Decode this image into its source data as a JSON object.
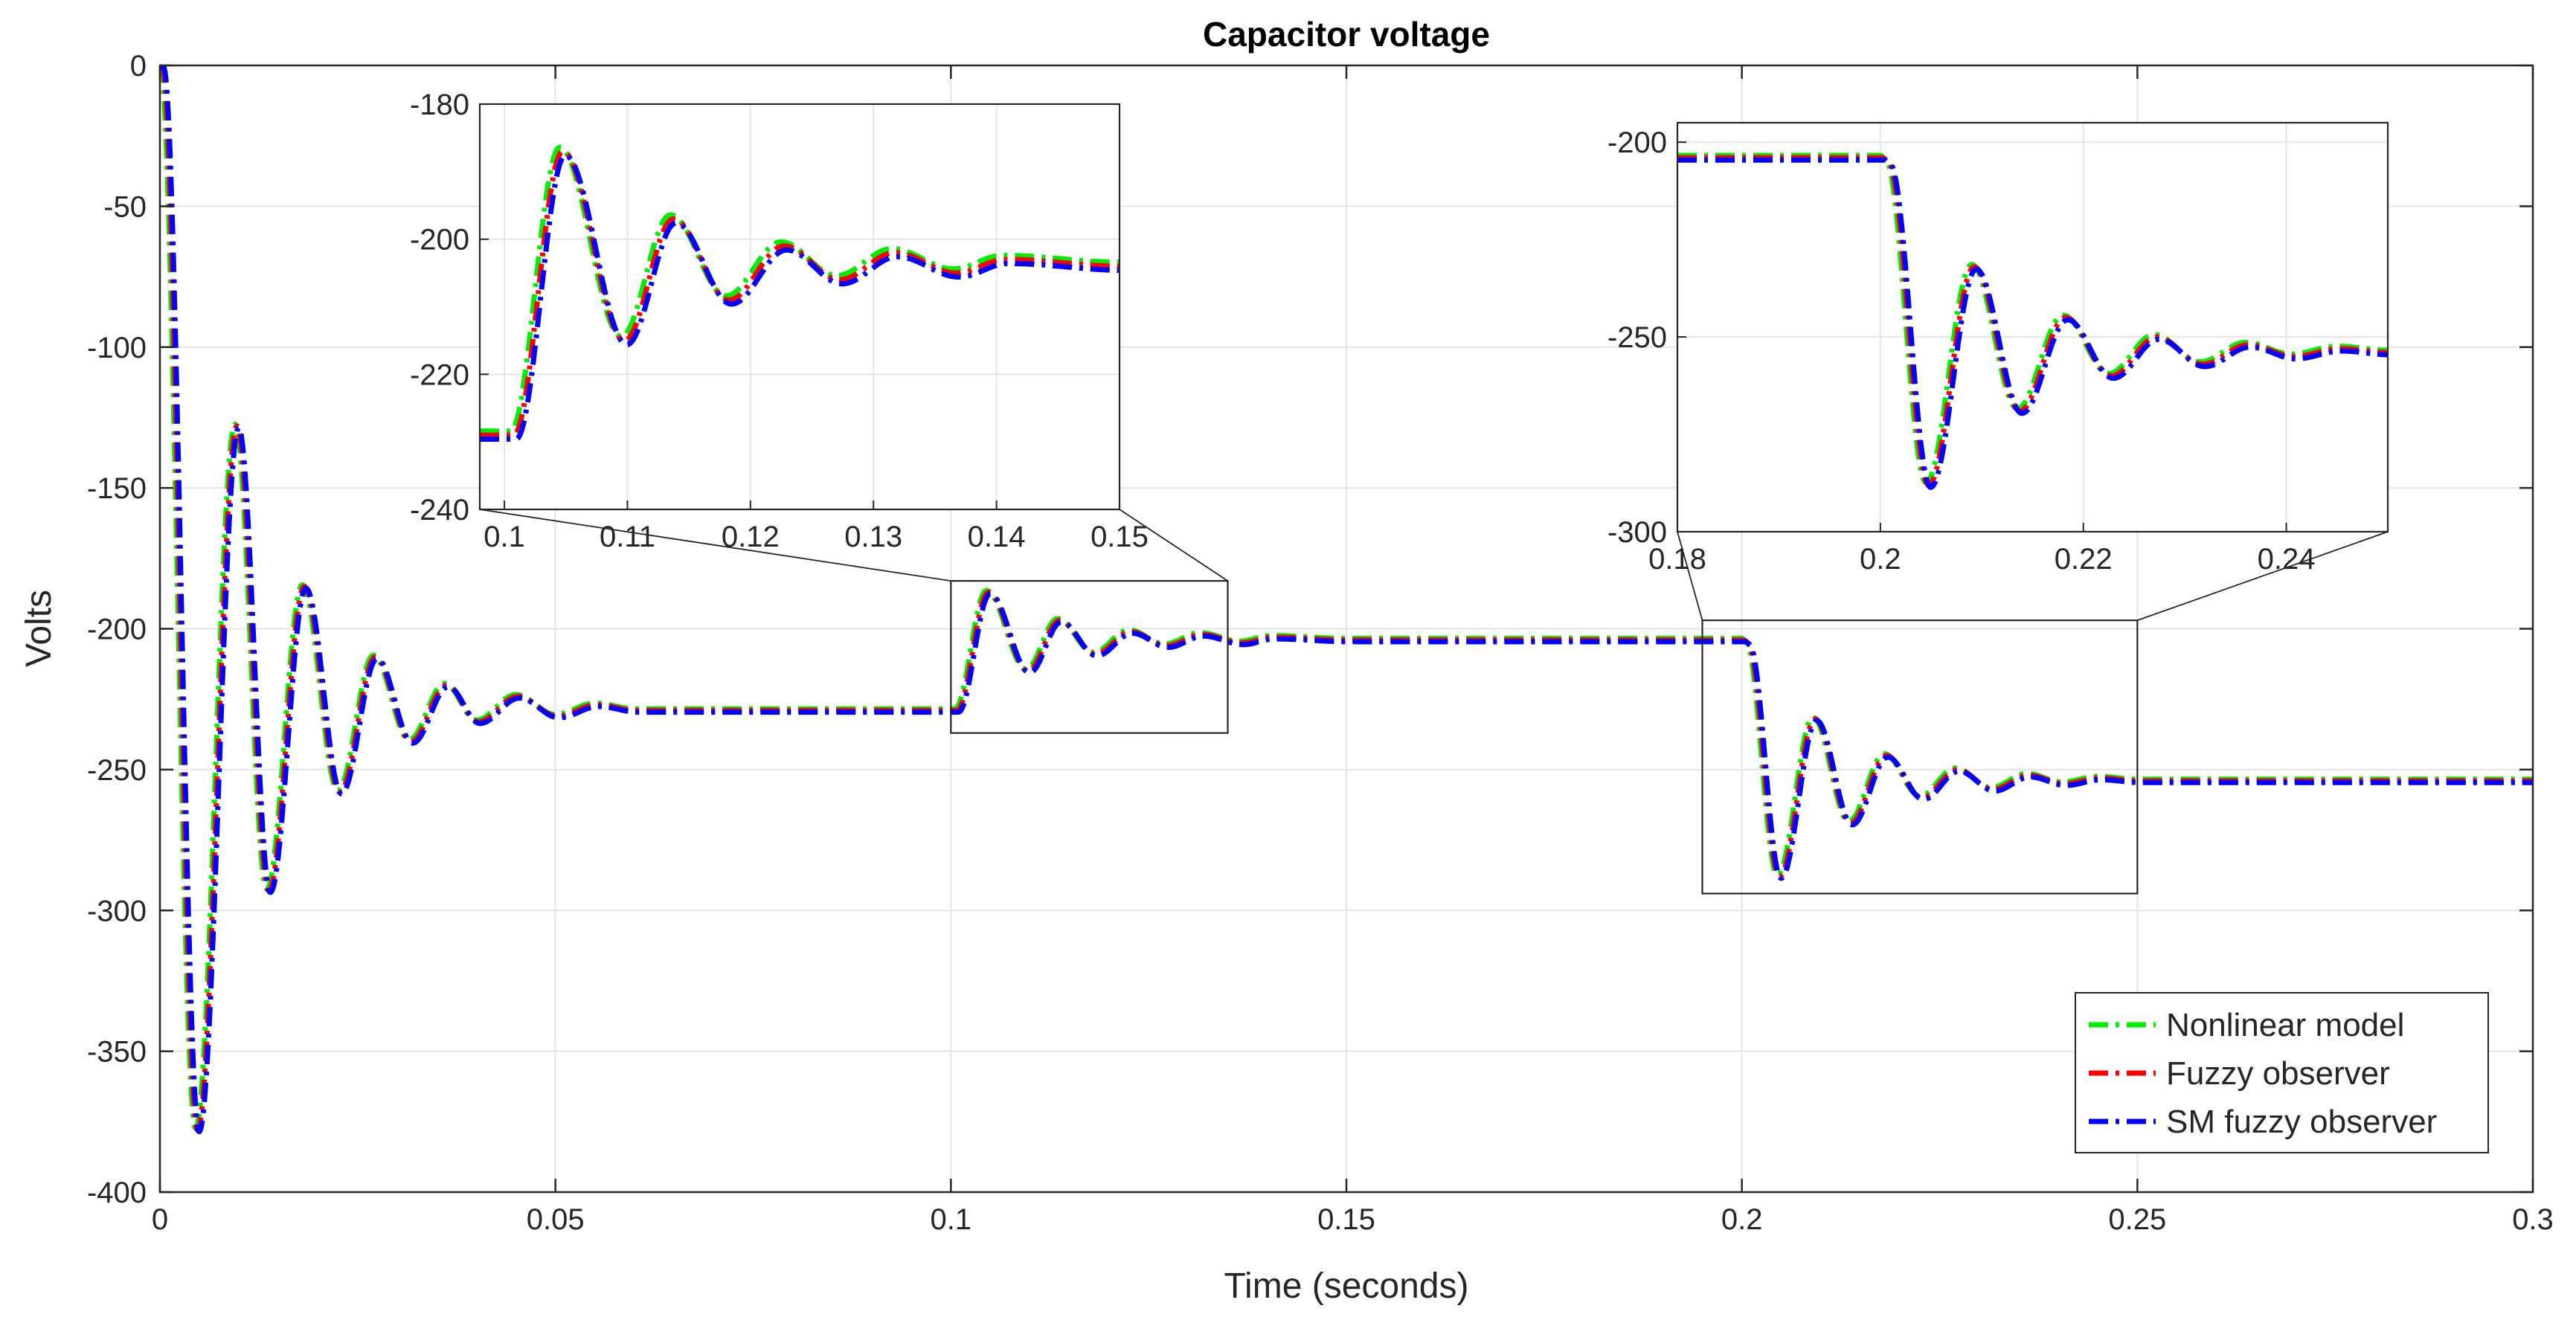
{
  "chart_data": {
    "type": "line",
    "title": "Capacitor voltage",
    "xlabel": "Time (seconds)",
    "ylabel": "Volts",
    "xlim": [
      0,
      0.3
    ],
    "ylim": [
      -400,
      0
    ],
    "xticks": [
      0,
      0.05,
      0.1,
      0.15,
      0.2,
      0.25,
      0.3
    ],
    "xtick_labels": [
      "0",
      "0.05",
      "0.1",
      "0.15",
      "0.2",
      "0.25",
      "0.3"
    ],
    "yticks": [
      0,
      -50,
      -100,
      -150,
      -200,
      -250,
      -300,
      -350,
      -400
    ],
    "ytick_labels": [
      "0",
      "-50",
      "-100",
      "-150",
      "-200",
      "-250",
      "-300",
      "-350",
      "-400"
    ],
    "grid": true,
    "legend_position": "bottom-right",
    "series": [
      {
        "name": "Nonlinear model",
        "color": "#00ee00",
        "style": "dash-dot"
      },
      {
        "name": "Fuzzy observer",
        "color": "#ff0000",
        "style": "dash-dot"
      },
      {
        "name": "SM fuzzy observer",
        "color": "#0000ff",
        "style": "dash-dot"
      }
    ],
    "signal": {
      "steady_levels": [
        {
          "t_start": 0,
          "t_end": 0.1,
          "value": -229
        },
        {
          "t_start": 0.1,
          "t_end": 0.2,
          "value": -204
        },
        {
          "t_start": 0.2,
          "t_end": 0.3,
          "value": -254
        }
      ],
      "keypoints": [
        [
          0,
          0
        ],
        [
          0.0045,
          -378
        ],
        [
          0.0095,
          -128
        ],
        [
          0.0135,
          -293
        ],
        [
          0.018,
          -185
        ],
        [
          0.0225,
          -258
        ],
        [
          0.027,
          -210
        ],
        [
          0.0315,
          -240
        ],
        [
          0.036,
          -220
        ],
        [
          0.04,
          -233
        ],
        [
          0.045,
          -224
        ],
        [
          0.05,
          -231
        ],
        [
          0.055,
          -227
        ],
        [
          0.06,
          -229
        ],
        [
          0.1,
          -229
        ],
        [
          0.1005,
          -229
        ],
        [
          0.1045,
          -187
        ],
        [
          0.1095,
          -215
        ],
        [
          0.1135,
          -197
        ],
        [
          0.118,
          -209
        ],
        [
          0.1225,
          -201
        ],
        [
          0.127,
          -206
        ],
        [
          0.1315,
          -202
        ],
        [
          0.1365,
          -205
        ],
        [
          0.1405,
          -203
        ],
        [
          0.15,
          -204
        ],
        [
          0.2,
          -204
        ],
        [
          0.2005,
          -205
        ],
        [
          0.2045,
          -288
        ],
        [
          0.209,
          -232
        ],
        [
          0.2135,
          -269
        ],
        [
          0.218,
          -245
        ],
        [
          0.2225,
          -260
        ],
        [
          0.227,
          -250
        ],
        [
          0.2315,
          -257
        ],
        [
          0.236,
          -252
        ],
        [
          0.2405,
          -255
        ],
        [
          0.245,
          -253
        ],
        [
          0.25,
          -254
        ],
        [
          0.3,
          -254
        ]
      ]
    },
    "insets": [
      {
        "xlim": [
          0.098,
          0.15
        ],
        "ylim": [
          -240,
          -180
        ],
        "xticks": [
          0.1,
          0.11,
          0.12,
          0.13,
          0.14,
          0.15
        ],
        "xtick_labels": [
          "0.1",
          "0.11",
          "0.12",
          "0.13",
          "0.14",
          "0.15"
        ],
        "yticks": [
          -180,
          -200,
          -220,
          -240
        ],
        "ytick_labels": [
          "-180",
          "-200",
          "-220",
          "-240"
        ],
        "zoom_region": {
          "xlim": [
            0.1,
            0.135
          ],
          "ylim": [
            -237,
            -183
          ]
        }
      },
      {
        "xlim": [
          0.18,
          0.25
        ],
        "ylim": [
          -300,
          -195
        ],
        "xticks": [
          0.18,
          0.2,
          0.22,
          0.24
        ],
        "xtick_labels": [
          "0.18",
          "0.2",
          "0.22",
          "0.24"
        ],
        "yticks": [
          -200,
          -250,
          -300
        ],
        "ytick_labels": [
          "-200",
          "-250",
          "-300"
        ],
        "zoom_region": {
          "xlim": [
            0.195,
            0.25
          ],
          "ylim": [
            -294,
            -197
          ]
        }
      }
    ]
  }
}
